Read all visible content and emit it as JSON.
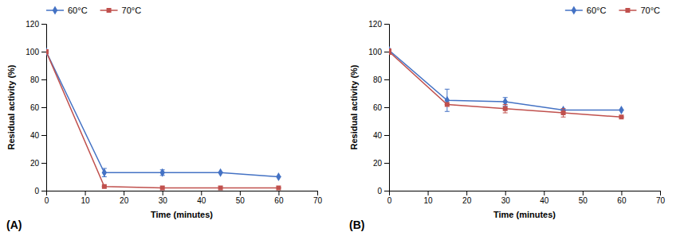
{
  "chart_data": [
    {
      "type": "line",
      "annotations": [
        "(A)"
      ],
      "xlabel": "Time (minutes)",
      "ylabel": "Residual activity (%)",
      "x": [
        0,
        15,
        30,
        45,
        60
      ],
      "series": [
        {
          "name": "60°C",
          "color": "#4472C4",
          "marker": "diamond",
          "values": [
            100,
            13,
            13,
            13,
            10
          ],
          "yerr": [
            0,
            3,
            2,
            0,
            0
          ]
        },
        {
          "name": "70°C",
          "color": "#C0504D",
          "marker": "square",
          "values": [
            100,
            3,
            2,
            2,
            2
          ],
          "yerr": [
            0,
            0,
            0,
            0,
            0
          ]
        }
      ],
      "xlim": [
        0,
        70
      ],
      "ylim": [
        0,
        120
      ],
      "xticks": [
        0,
        10,
        20,
        30,
        40,
        50,
        60,
        70
      ],
      "yticks": [
        0,
        20,
        40,
        60,
        80,
        100,
        120
      ],
      "legend": "upper left"
    },
    {
      "type": "line",
      "annotations": [
        "(B)"
      ],
      "xlabel": "Time (minutes)",
      "ylabel": "Residual activity (%)",
      "x": [
        0,
        15,
        30,
        45,
        60
      ],
      "series": [
        {
          "name": "60°C",
          "color": "#4472C4",
          "marker": "diamond",
          "values": [
            101,
            65,
            64,
            58,
            58
          ],
          "yerr": [
            1,
            8,
            3,
            0,
            0
          ]
        },
        {
          "name": "70°C",
          "color": "#C0504D",
          "marker": "square",
          "values": [
            100,
            62,
            59,
            56,
            53
          ],
          "yerr": [
            2,
            0,
            3,
            3,
            0
          ]
        }
      ],
      "xlim": [
        0,
        70
      ],
      "ylim": [
        0,
        120
      ],
      "xticks": [
        0,
        10,
        20,
        30,
        40,
        50,
        60,
        70
      ],
      "yticks": [
        0,
        20,
        40,
        60,
        80,
        100,
        120
      ],
      "legend": "upper right"
    }
  ]
}
